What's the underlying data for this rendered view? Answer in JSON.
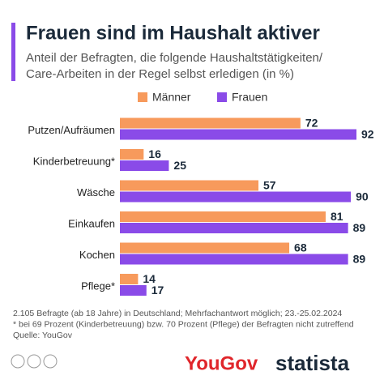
{
  "chart_data": {
    "type": "bar",
    "orientation": "horizontal",
    "title": "Frauen sind im Haushalt aktiver",
    "subtitle": [
      "Anteil der Befragten, die folgende Haushaltstätigkeiten/",
      "Care-Arbeiten in der Regel selbst erledigen (in %)"
    ],
    "categories": [
      "Putzen/Aufräumen",
      "Kinderbetreuung*",
      "Wäsche",
      "Einkaufen",
      "Kochen",
      "Pflege*"
    ],
    "series": [
      {
        "name": "Männer",
        "color": "#f79a5c",
        "values": [
          72,
          16,
          57,
          81,
          68,
          14
        ]
      },
      {
        "name": "Frauen",
        "color": "#8a4be8",
        "values": [
          92,
          25,
          90,
          89,
          89,
          17
        ]
      }
    ],
    "notes": [
      "2.105 Befragte (ab 18 Jahre) in Deutschland; Mehrfachantwort möglich; 23.-25.02.2024",
      "* bei 69 Prozent (Kinderbetreuung) bzw. 70 Prozent (Pflege) der Befragten nicht zutreffend",
      "Quelle: YouGov"
    ],
    "logos": [
      "YouGov",
      "statista"
    ]
  }
}
